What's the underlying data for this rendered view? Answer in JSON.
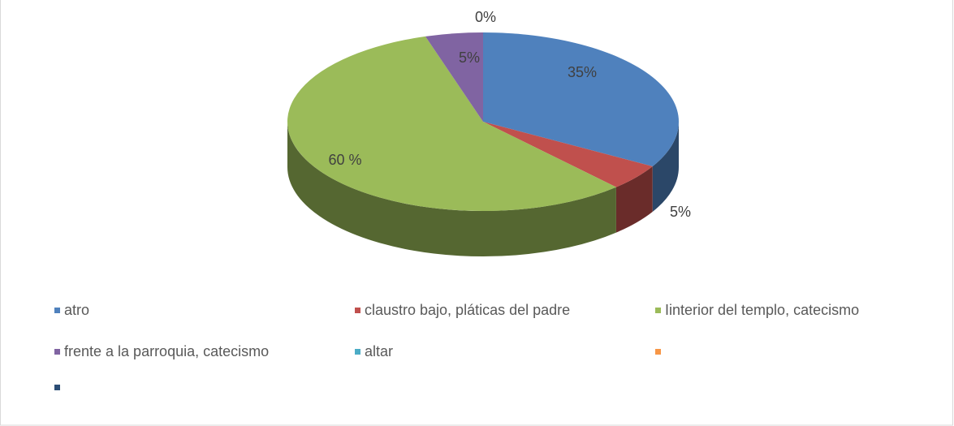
{
  "chart_data": {
    "type": "pie",
    "categories": [
      "atro",
      "claustro bajo, pláticas del padre",
      "Iinterior del templo, catecismo",
      "frente a la parroquia, catecismo",
      "altar",
      null,
      null
    ],
    "values": [
      35,
      5,
      60,
      5,
      0,
      0,
      0
    ],
    "value_labels": [
      "35%",
      "5%",
      "60 %",
      "5%",
      "0%",
      null,
      null
    ],
    "colors": [
      "#4f81bd",
      "#c0504d",
      "#9bbb59",
      "#8064a2",
      "#4bacc6",
      "#f79646",
      "#2c4d75"
    ]
  }
}
